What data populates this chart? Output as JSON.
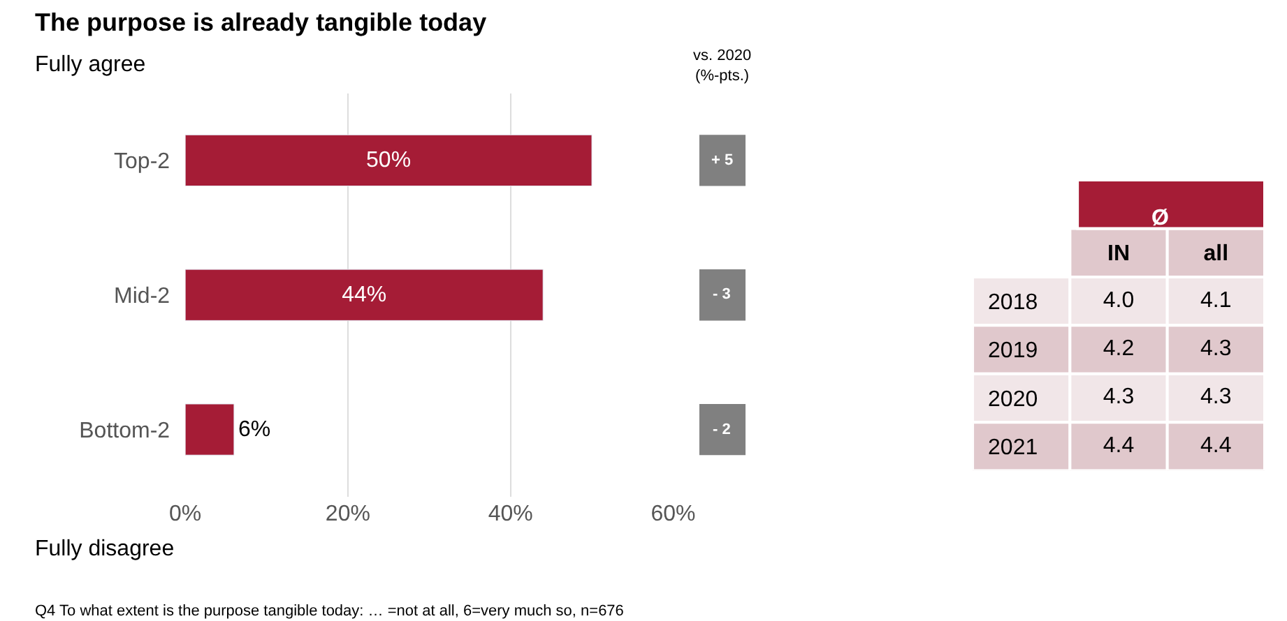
{
  "chart_data": [
    {
      "type": "bar",
      "orientation": "horizontal",
      "title": "The purpose is already tangible today",
      "categories": [
        "Top-2",
        "Mid-2",
        "Bottom-2"
      ],
      "values": [
        50,
        44,
        6
      ],
      "value_labels": [
        "50%",
        "44%",
        "6%"
      ],
      "color": "#a51c36",
      "xlim": [
        0,
        60
      ],
      "xticks": [
        {
          "value": 0,
          "label": "0%"
        },
        {
          "value": 20,
          "label": "20%"
        },
        {
          "value": 40,
          "label": "40%"
        },
        {
          "value": 60,
          "label": "60%"
        }
      ],
      "grid": "x",
      "legend": false,
      "annotations": [
        "Fully agree",
        "Fully disagree",
        "Q4 To what extent is the purpose tangible today: … =not at all, 6=very much so, n=676"
      ]
    },
    {
      "type": "other",
      "title": "vs. 2020\n(%-pts.)",
      "annotations": [
        "+ 5",
        "- 3",
        "- 2"
      ],
      "color": "#808080"
    },
    {
      "type": "heatmap",
      "title": "Ø",
      "categories": [
        "IN",
        "all"
      ],
      "y_categories": [
        "2018",
        "2019",
        "2020",
        "2021"
      ],
      "cells": [
        [
          4.0,
          4.1
        ],
        [
          4.2,
          4.3
        ],
        [
          4.3,
          4.3
        ],
        [
          4.4,
          4.4
        ]
      ],
      "cell_labels": [
        [
          "4.0",
          "4.1"
        ],
        [
          "4.2",
          "4.3"
        ],
        [
          "4.3",
          "4.3"
        ],
        [
          "4.4",
          "4.4"
        ]
      ],
      "color": "#a51c36"
    }
  ]
}
